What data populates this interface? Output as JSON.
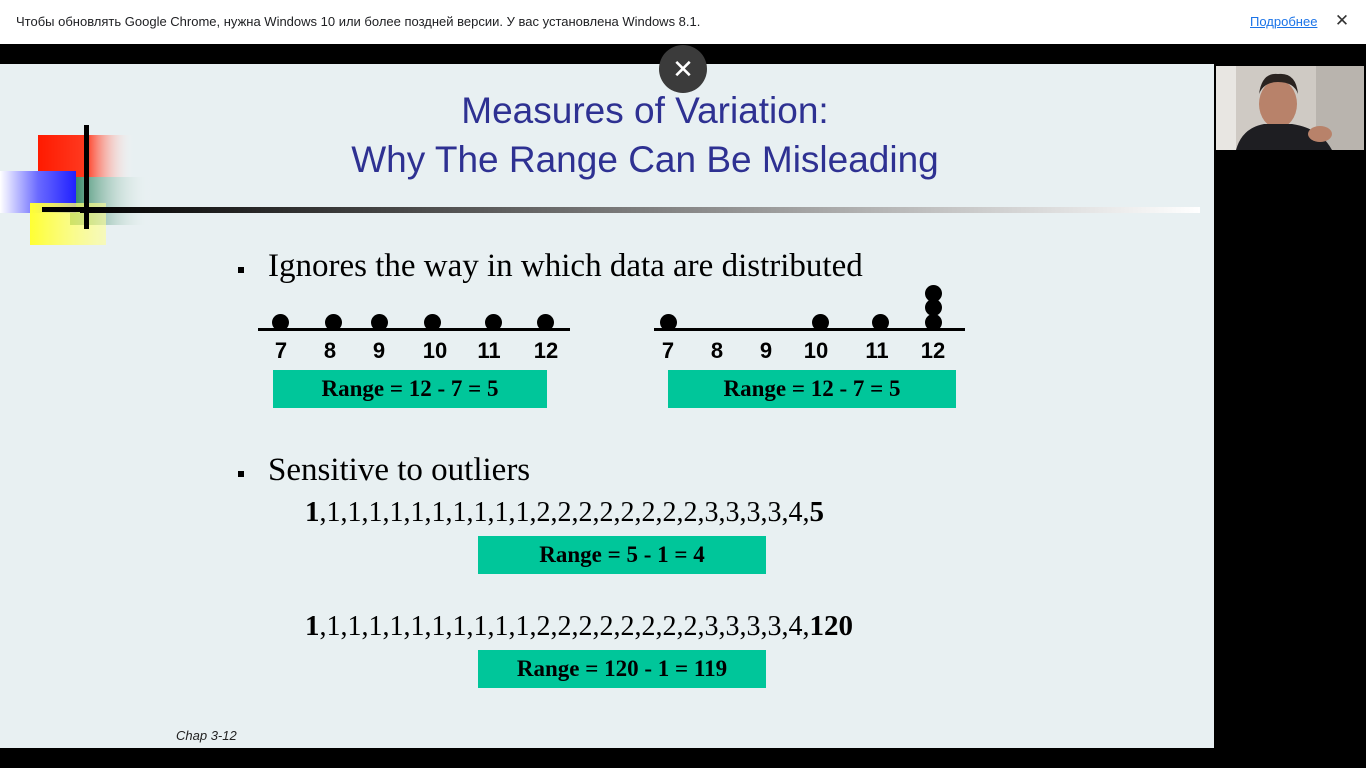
{
  "infobar": {
    "message": "Чтобы обновлять Google Chrome, нужна Windows 10 или более поздней версии. У вас установлена Windows 8.1.",
    "more_link": "Подробнее",
    "close_glyph": "✕"
  },
  "overlay": {
    "close_glyph": "✕"
  },
  "slide": {
    "title_line1": "Measures of Variation:",
    "title_line2": "Why The Range Can Be Misleading",
    "bullet1": "Ignores the way in which data are distributed",
    "bullet2": "Sensitive to outliers",
    "footer": "Chap 3-12",
    "title_color": "#2e3192",
    "box_color": "#00c69a"
  },
  "dot_plots": [
    {
      "ticks": [
        "7",
        "8",
        "9",
        "10",
        "11",
        "12"
      ],
      "range_label": "Range = 12 - 7 = 5",
      "points": [
        {
          "value": 7,
          "count": 1
        },
        {
          "value": 8,
          "count": 1
        },
        {
          "value": 9,
          "count": 1
        },
        {
          "value": 10,
          "count": 1
        },
        {
          "value": 11,
          "count": 1
        },
        {
          "value": 12,
          "count": 1
        }
      ]
    },
    {
      "ticks": [
        "7",
        "8",
        "9",
        "10",
        "11",
        "12"
      ],
      "range_label": "Range = 12 - 7 = 5",
      "points": [
        {
          "value": 7,
          "count": 1
        },
        {
          "value": 10,
          "count": 1
        },
        {
          "value": 11,
          "count": 1
        },
        {
          "value": 12,
          "count": 3
        }
      ]
    }
  ],
  "outliers": [
    {
      "first": "1",
      "middle": ",1,1,1,1,1,1,1,1,1,1,2,2,2,2,2,2,2,2,3,3,3,3,4,",
      "last": "5",
      "range_label": "Range = 5 - 1 = 4"
    },
    {
      "first": "1",
      "middle": ",1,1,1,1,1,1,1,1,1,1,2,2,2,2,2,2,2,2,3,3,3,3,4,",
      "last": "120",
      "range_label": "Range = 120 - 1 = 119"
    }
  ]
}
